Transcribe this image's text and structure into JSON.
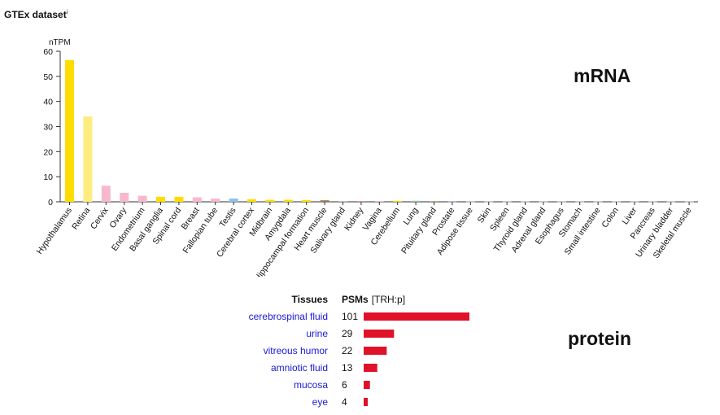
{
  "title": "GTEx dataset",
  "title_info_marker": "i",
  "mrna_label": "mRNA",
  "protein_label": "protein",
  "chart_data": [
    {
      "type": "bar",
      "ylabel": "nTPM",
      "ylim": [
        0,
        60
      ],
      "yticks": [
        0,
        10,
        20,
        30,
        40,
        50,
        60
      ],
      "categories": [
        "Hypothalamus",
        "Retina",
        "Cervix",
        "Ovary",
        "Endometrium",
        "Basal ganglia",
        "Spinal cord",
        "Breast",
        "Fallopian tube",
        "Testis",
        "Cerebral cortex",
        "Midbrain",
        "Amygdala",
        "Hippocampal formation",
        "Heart muscle",
        "Salivary gland",
        "Kidney",
        "Vagina",
        "Cerebellum",
        "Lung",
        "Pituitary gland",
        "Prostate",
        "Adipose tissue",
        "Skin",
        "Spleen",
        "Thyroid gland",
        "Adrenal gland",
        "Esophagus",
        "Stomach",
        "Small intestine",
        "Colon",
        "Liver",
        "Pancreas",
        "Urinary bladder",
        "Skeletal muscle"
      ],
      "values": [
        56.5,
        34.0,
        6.4,
        3.6,
        2.4,
        2.0,
        2.0,
        1.8,
        1.3,
        1.3,
        1.0,
        0.8,
        0.8,
        0.7,
        0.6,
        0.2,
        0.3,
        0.3,
        0.4,
        0.4,
        0.3,
        0.1,
        0.1,
        0.1,
        0.1,
        0.1,
        0.1,
        0.1,
        0.1,
        0.1,
        0.1,
        0.1,
        0.1,
        0.1,
        0.1
      ],
      "colors": [
        "#ffdc00",
        "#ffec80",
        "#f7b8cf",
        "#f7b8cf",
        "#f7b8cf",
        "#ffdc00",
        "#ffdc00",
        "#f7b8cf",
        "#f7b8cf",
        "#8ac4ef",
        "#ffdc00",
        "#ffdc00",
        "#ffdc00",
        "#ffdc00",
        "#a07850",
        "#a0a0a0",
        "#d89090",
        "#f7b8cf",
        "#ffdc00",
        "#80c8a8",
        "#c0a080",
        "#9090d0",
        "#d0d0d0",
        "#d0d0d0",
        "#d0d0d0",
        "#d0d0d0",
        "#d0d0d0",
        "#d0d0d0",
        "#d0d0d0",
        "#d0d0d0",
        "#d0d0d0",
        "#d0d0d0",
        "#d0d0d0",
        "#d0d0d0",
        "#d0d0d0"
      ]
    },
    {
      "type": "bar",
      "orientation": "horizontal",
      "columns": [
        "Tissues",
        "PSMs"
      ],
      "psm_suffix": "[TRH:p]",
      "categories": [
        "cerebrospinal fluid",
        "urine",
        "vitreous humor",
        "amniotic fluid",
        "mucosa",
        "eye"
      ],
      "values": [
        101,
        29,
        22,
        13,
        6,
        4
      ],
      "bar_color": "#e0122a"
    }
  ]
}
